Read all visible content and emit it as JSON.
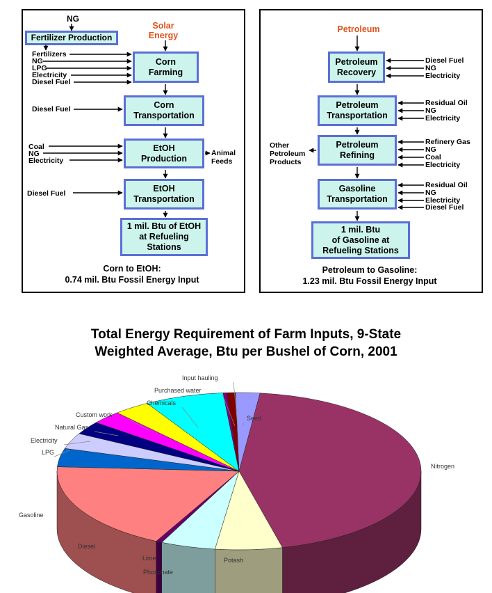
{
  "left": {
    "ng": "NG",
    "fertilizer_box": "Fertilizer Production",
    "solar": "Solar\nEnergy",
    "boxes": [
      "Corn\nFarming",
      "Corn\nTransportation",
      "EtOH\nProduction",
      "EtOH\nTransportation",
      "1 mil. Btu of EtOH\nat Refueling\nStations"
    ],
    "farm_inputs": [
      "Fertilizers",
      "NG",
      "LPG",
      "Electricity",
      "Diesel Fuel"
    ],
    "transport_input": "Diesel Fuel",
    "production_inputs": [
      "Coal",
      "NG",
      "Electricity"
    ],
    "animal_feeds": "Animal\nFeeds",
    "etoh_transport_input": "Diesel Fuel",
    "caption_line1": "Corn to EtOH:",
    "caption_line2": "0.74 mil. Btu Fossil Energy Input"
  },
  "right": {
    "petroleum": "Petroleum",
    "boxes": [
      "Petroleum\nRecovery",
      "Petroleum\nTransportation",
      "Petroleum\nRefining",
      "Gasoline\nTransportation",
      "1 mil. Btu\nof Gasoline at\nRefueling Stations"
    ],
    "recovery_inputs": [
      "Diesel Fuel",
      "NG",
      "Electricity"
    ],
    "transport_inputs": [
      "Residual Oil",
      "NG",
      "Electricity"
    ],
    "refining_inputs": [
      "Refinery Gas",
      "NG",
      "Coal",
      "Electricity"
    ],
    "gasoline_transport_inputs": [
      "Residual Oil",
      "NG",
      "Electricity",
      "Diesel Fuel"
    ],
    "other_products": "Other\nPetroleum\nProducts",
    "caption_line1": "Petroleum to Gasoline:",
    "caption_line2": "1.23 mil. Btu Fossil Energy Input"
  },
  "pie": {
    "title": "Total Energy Requirement of Farm Inputs, 9-State\nWeighted Average, Btu per Bushel of Corn, 2001"
  },
  "chart_data": {
    "type": "pie",
    "title": "Total Energy Requirement of Farm Inputs, 9-State Weighted Average, Btu per Bushel of Corn, 2001",
    "slices": [
      {
        "label": "Seed",
        "value": 2.0,
        "color": "#9999ff"
      },
      {
        "label": "Nitrogen",
        "value": 41.0,
        "color": "#993366"
      },
      {
        "label": "Potash",
        "value": 5.5,
        "color": "#ffffcc"
      },
      {
        "label": "Phosphate",
        "value": 4.5,
        "color": "#ccffff"
      },
      {
        "label": "Lime",
        "value": 0.5,
        "color": "#660066"
      },
      {
        "label": "Diesel",
        "value": 17.0,
        "color": "#ff8080"
      },
      {
        "label": "Gasoline",
        "value": 3.5,
        "color": "#0066cc"
      },
      {
        "label": "LPG",
        "value": 3.0,
        "color": "#ccccff"
      },
      {
        "label": "Electricity",
        "value": 2.5,
        "color": "#000080"
      },
      {
        "label": "Natural Gas",
        "value": 2.5,
        "color": "#ff00ff"
      },
      {
        "label": "Custom work",
        "value": 3.0,
        "color": "#ffff00"
      },
      {
        "label": "Chemicals",
        "value": 6.5,
        "color": "#00ffff"
      },
      {
        "label": "Purchased water",
        "value": 0.3,
        "color": "#800080"
      },
      {
        "label": "Input hauling",
        "value": 0.7,
        "color": "#800000"
      }
    ]
  }
}
